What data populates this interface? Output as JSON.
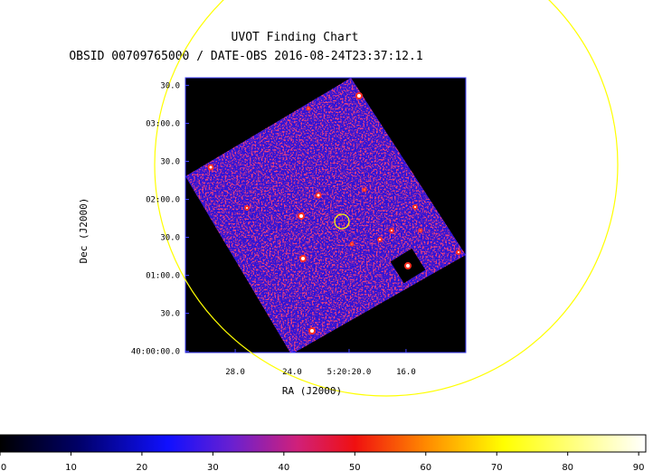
{
  "chart_data": {
    "type": "image",
    "title": "UVOT Finding Chart",
    "subtitle": "OBSID 00709765000 / DATE-OBS 2016-08-24T23:37:12.1",
    "xlabel": "RA (J2000)",
    "ylabel": "Dec (J2000)",
    "xlim": [
      31.5,
      11.8
    ],
    "xticks": [
      {
        "value": 28,
        "label": "28.0"
      },
      {
        "value": 24,
        "label": "24.0"
      },
      {
        "value": 20,
        "label": "5:20:20.0"
      },
      {
        "value": 16,
        "label": "16.0"
      }
    ],
    "ylim": [
      -1,
      216
    ],
    "yticks": [
      {
        "value": 0,
        "label": "40:00:00.0"
      },
      {
        "value": 30,
        "label": "30.0"
      },
      {
        "value": 60,
        "label": "01:00.0"
      },
      {
        "value": 90,
        "label": "30.0"
      },
      {
        "value": 120,
        "label": "02:00.0"
      },
      {
        "value": 150,
        "label": "30.0"
      },
      {
        "value": 180,
        "label": "03:00.0"
      },
      {
        "value": 210,
        "label": "30.0"
      }
    ],
    "clim": [
      0,
      91
    ],
    "cticks": [
      0,
      10,
      20,
      30,
      40,
      50,
      60,
      70,
      80,
      90
    ]
  }
}
